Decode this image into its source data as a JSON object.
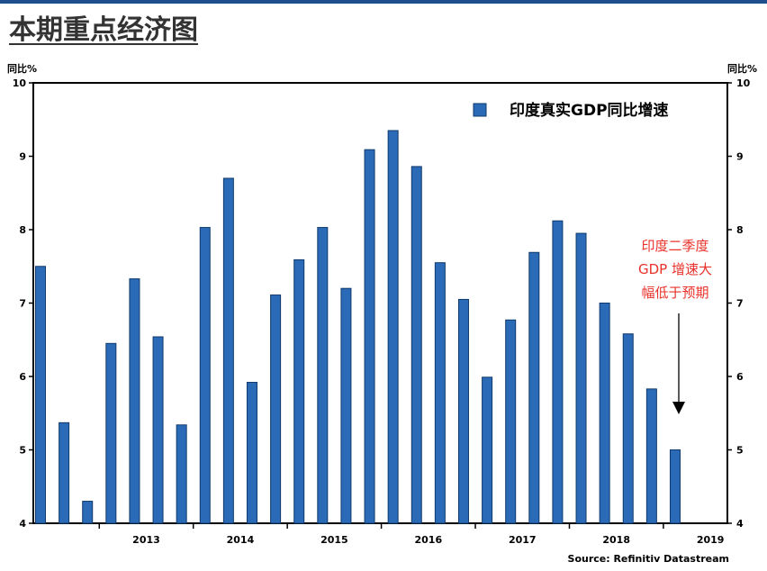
{
  "page_title": "本期重点经济图",
  "colors": {
    "bar": "#2a6ab7",
    "bar_edge": "#103a6c",
    "note": "#e8312a",
    "header_rule": "#1f4e8c"
  },
  "chart_data": {
    "type": "bar",
    "title": "",
    "ylabel_left": "同比%",
    "ylabel_right": "同比%",
    "ylim": [
      4,
      10
    ],
    "yticks": [
      4,
      5,
      6,
      7,
      8,
      9,
      10
    ],
    "year_labels": [
      "2013",
      "2014",
      "2015",
      "2016",
      "2017",
      "2018",
      "2019"
    ],
    "series": [
      {
        "name": "印度真实GDP同比增速",
        "values": [
          7.5,
          5.37,
          4.3,
          6.45,
          7.33,
          6.54,
          5.34,
          8.03,
          8.7,
          5.92,
          7.11,
          7.59,
          8.03,
          7.2,
          9.09,
          9.35,
          8.86,
          7.55,
          7.05,
          5.99,
          6.77,
          7.69,
          8.12,
          7.95,
          7.0,
          6.58,
          5.83,
          5.0
        ]
      }
    ],
    "legend_position": "top-right",
    "grid": false,
    "annotation": {
      "lines": [
        "印度二季度",
        "GDP 增速大",
        "幅低于预期"
      ]
    },
    "source": "Source: Refinitiv Datastream"
  }
}
